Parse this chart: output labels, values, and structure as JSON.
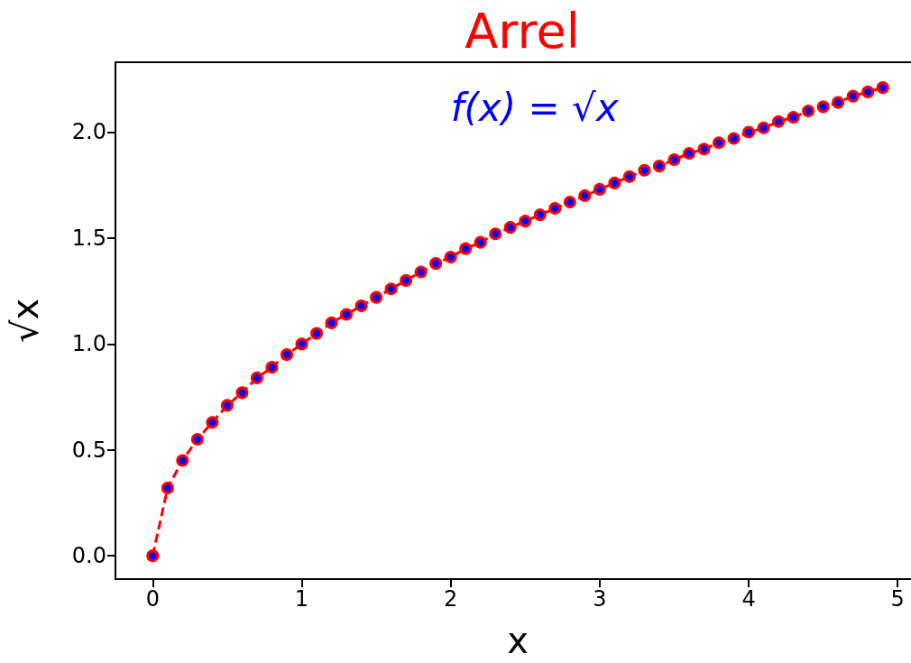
{
  "chart_data": {
    "type": "line",
    "title": "Arrel",
    "xlabel": "x",
    "ylabel": "√x",
    "annotations": [
      "f(x) = √x"
    ],
    "x": [
      0,
      0.1,
      0.2,
      0.3,
      0.4,
      0.5,
      0.6,
      0.7,
      0.8,
      0.9,
      1.0,
      1.1,
      1.2,
      1.3,
      1.4,
      1.5,
      1.6,
      1.7,
      1.8,
      1.9,
      2.0,
      2.1,
      2.2,
      2.3,
      2.4,
      2.5,
      2.6,
      2.7,
      2.8,
      2.9,
      3.0,
      3.1,
      3.2,
      3.3,
      3.4,
      3.5,
      3.6,
      3.7,
      3.8,
      3.9,
      4.0,
      4.1,
      4.2,
      4.3,
      4.4,
      4.5,
      4.6,
      4.7,
      4.8,
      4.9
    ],
    "series": [
      {
        "color": "#ff0000",
        "values": [
          0,
          0.32,
          0.45,
          0.55,
          0.63,
          0.71,
          0.77,
          0.84,
          0.89,
          0.95,
          1.0,
          1.05,
          1.1,
          1.14,
          1.18,
          1.22,
          1.26,
          1.3,
          1.34,
          1.38,
          1.41,
          1.45,
          1.48,
          1.52,
          1.55,
          1.58,
          1.61,
          1.64,
          1.67,
          1.7,
          1.73,
          1.76,
          1.79,
          1.82,
          1.84,
          1.87,
          1.9,
          1.92,
          1.95,
          1.97,
          2.0,
          2.02,
          2.05,
          2.07,
          2.1,
          2.12,
          2.14,
          2.17,
          2.19,
          2.21
        ]
      }
    ],
    "xlim": [
      -0.25,
      5.15
    ],
    "ylim": [
      -0.11,
      2.33
    ],
    "xticks": [
      0,
      1,
      2,
      3,
      4,
      5
    ],
    "yticks": [
      {
        "value": 0,
        "label": "0.0"
      },
      0.5,
      {
        "value": 1,
        "label": "1.0"
      },
      1.5,
      {
        "value": 2,
        "label": "2.0"
      }
    ],
    "marker": "circle",
    "line_style": "dashed"
  }
}
